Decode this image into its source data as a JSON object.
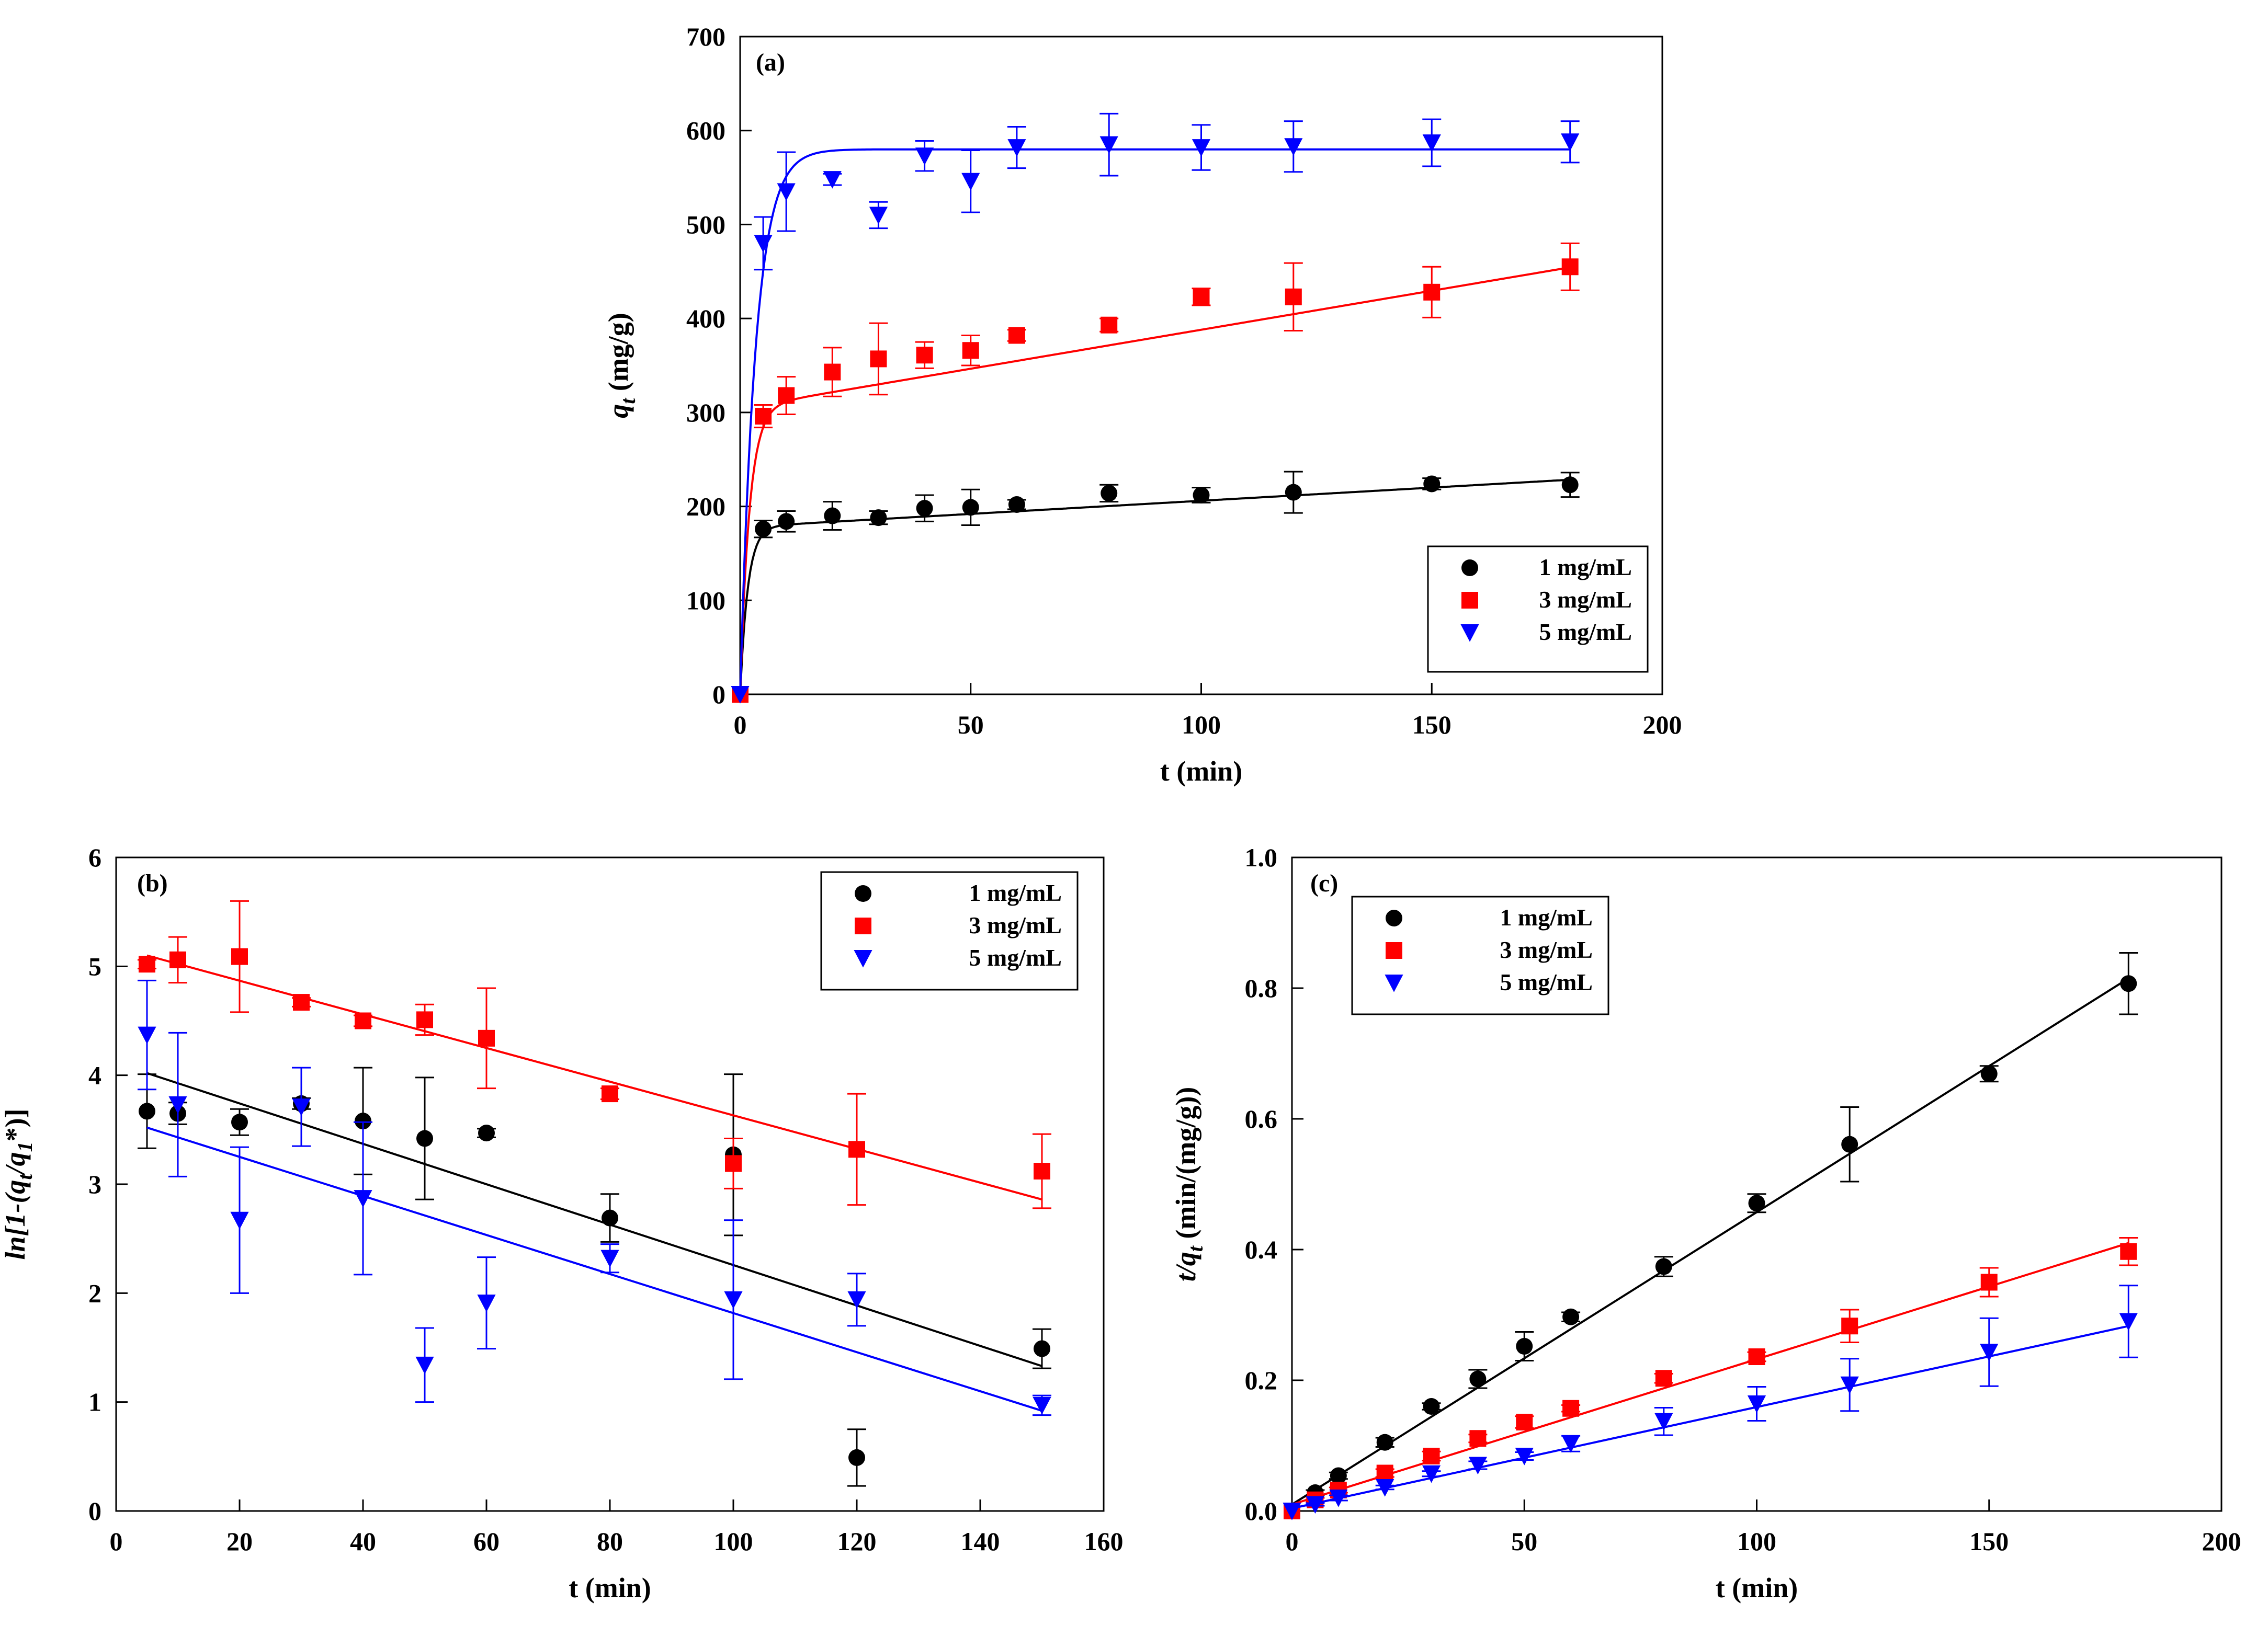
{
  "chart_data": [
    {
      "panel": "(a)",
      "type": "scatter",
      "xlabel": "t (min)",
      "ylabel_main": "q",
      "ylabel_sub": "t",
      "ylabel_unit": " (mg/g)",
      "xlim": [
        0,
        200
      ],
      "ylim": [
        0,
        700
      ],
      "xticks": [
        0,
        50,
        100,
        150,
        200
      ],
      "yticks": [
        0,
        100,
        200,
        300,
        400,
        500,
        600,
        700
      ],
      "legend": "bottom-right",
      "series": [
        {
          "name": "1 mg/mL",
          "color": "#000000",
          "marker": "circle",
          "x": [
            0,
            5,
            10,
            20,
            30,
            40,
            50,
            60,
            80,
            100,
            120,
            150,
            180
          ],
          "y": [
            0,
            176,
            184,
            190,
            188,
            198,
            199,
            202,
            214,
            212,
            215,
            224,
            223
          ],
          "err": [
            0,
            9,
            11,
            15,
            7,
            14,
            19,
            5,
            9,
            8,
            22,
            6,
            13
          ],
          "fit": {
            "model": "pfo_plus_linear",
            "qe": 178,
            "k": 0.6,
            "slope": 0.28
          }
        },
        {
          "name": "3 mg/mL",
          "color": "#ff0000",
          "marker": "square",
          "x": [
            0,
            5,
            10,
            20,
            30,
            40,
            50,
            60,
            80,
            100,
            120,
            150,
            180
          ],
          "y": [
            0,
            296,
            318,
            343,
            357,
            361,
            366,
            382,
            393,
            423,
            423,
            428,
            455
          ],
          "err": [
            0,
            12,
            20,
            26,
            38,
            14,
            16,
            6,
            7,
            9,
            36,
            27,
            25
          ],
          "fit": {
            "model": "pfo_plus_linear",
            "qe": 305,
            "k": 0.5,
            "slope": 0.83
          }
        },
        {
          "name": "5 mg/mL",
          "color": "#0000ff",
          "marker": "triangle-down",
          "x": [
            0,
            5,
            10,
            20,
            30,
            40,
            50,
            60,
            80,
            100,
            120,
            150,
            180
          ],
          "y": [
            0,
            480,
            535,
            548,
            510,
            573,
            546,
            582,
            585,
            582,
            583,
            587,
            588
          ],
          "err": [
            0,
            28,
            42,
            6,
            14,
            16,
            33,
            22,
            33,
            24,
            27,
            25,
            22
          ],
          "fit": {
            "model": "pfo",
            "qe": 580,
            "k": 0.3
          }
        }
      ]
    },
    {
      "panel": "(b)",
      "type": "scatter",
      "xlabel": "t (min)",
      "ylabel_parts": [
        "ln[1-(q",
        "t",
        "/q",
        "1",
        "*)]"
      ],
      "xlim": [
        0,
        160
      ],
      "ylim": [
        0,
        6
      ],
      "xticks": [
        0,
        20,
        40,
        60,
        80,
        100,
        120,
        140,
        160
      ],
      "yticks": [
        0,
        1,
        2,
        3,
        4,
        5,
        6
      ],
      "legend": "top-right",
      "series": [
        {
          "name": "1 mg/mL",
          "color": "#000000",
          "marker": "circle",
          "x": [
            5,
            10,
            20,
            30,
            40,
            50,
            60,
            80,
            100,
            120,
            150
          ],
          "y": [
            3.67,
            3.65,
            3.57,
            3.74,
            3.58,
            3.42,
            3.47,
            2.69,
            3.27,
            0.49,
            1.49
          ],
          "err": [
            0.34,
            0.1,
            0.12,
            0.05,
            0.49,
            0.56,
            0.04,
            0.22,
            0.74,
            0.26,
            0.18
          ],
          "fit": {
            "model": "linear",
            "x": [
              5,
              150
            ],
            "y": [
              4.02,
              1.33
            ]
          }
        },
        {
          "name": "3 mg/mL",
          "color": "#ff0000",
          "marker": "square",
          "x": [
            5,
            10,
            20,
            30,
            40,
            50,
            60,
            80,
            100,
            120,
            150
          ],
          "y": [
            5.02,
            5.06,
            5.09,
            4.67,
            4.5,
            4.51,
            4.34,
            3.83,
            3.19,
            3.32,
            3.12
          ],
          "err": [
            0.04,
            0.21,
            0.51,
            0.04,
            0.05,
            0.14,
            0.46,
            0.05,
            0.23,
            0.51,
            0.34
          ],
          "fit": {
            "model": "linear",
            "x": [
              5,
              150
            ],
            "y": [
              5.1,
              2.86
            ]
          }
        },
        {
          "name": "5 mg/mL",
          "color": "#0000ff",
          "marker": "triangle-down",
          "x": [
            5,
            10,
            20,
            30,
            40,
            50,
            60,
            80,
            100,
            120,
            150
          ],
          "y": [
            4.37,
            3.73,
            2.67,
            3.71,
            2.87,
            1.34,
            1.91,
            2.32,
            1.94,
            1.94,
            0.97
          ],
          "err": [
            0.5,
            0.66,
            0.67,
            0.36,
            0.7,
            0.34,
            0.42,
            0.13,
            0.73,
            0.24,
            0.09
          ],
          "fit": {
            "model": "linear",
            "x": [
              5,
              150
            ],
            "y": [
              3.52,
              0.92
            ]
          }
        }
      ]
    },
    {
      "panel": "(c)",
      "type": "scatter",
      "xlabel": "t (min)",
      "ylabel_parts": [
        "t/q",
        "t",
        " (min/(mg/g))"
      ],
      "xlim": [
        0,
        200
      ],
      "ylim": [
        0,
        1.0
      ],
      "xticks": [
        0,
        50,
        100,
        150,
        200
      ],
      "yticks": [
        0.0,
        0.2,
        0.4,
        0.6,
        0.8,
        1.0
      ],
      "ytick_labels": [
        "0.0",
        "0.2",
        "0.4",
        "0.6",
        "0.8",
        "1.0"
      ],
      "legend": "top-left",
      "series": [
        {
          "name": "1 mg/mL",
          "color": "#000000",
          "marker": "circle",
          "x": [
            0,
            5,
            10,
            20,
            30,
            40,
            50,
            60,
            80,
            100,
            120,
            150,
            180
          ],
          "y": [
            0,
            0.028,
            0.054,
            0.105,
            0.16,
            0.202,
            0.252,
            0.297,
            0.374,
            0.471,
            0.561,
            0.669,
            0.807
          ],
          "err": [
            0,
            0.004,
            0.005,
            0.007,
            0.005,
            0.014,
            0.022,
            0.007,
            0.015,
            0.014,
            0.057,
            0.012,
            0.047
          ],
          "fit": {
            "model": "linear",
            "x": [
              0,
              180
            ],
            "y": [
              0.01,
              0.815
            ]
          }
        },
        {
          "name": "3 mg/mL",
          "color": "#ff0000",
          "marker": "square",
          "x": [
            0,
            5,
            10,
            20,
            30,
            40,
            50,
            60,
            80,
            100,
            120,
            150,
            180
          ],
          "y": [
            0,
            0.017,
            0.032,
            0.058,
            0.084,
            0.111,
            0.136,
            0.157,
            0.203,
            0.236,
            0.283,
            0.35,
            0.397
          ],
          "err": [
            0,
            0.003,
            0.004,
            0.006,
            0.007,
            0.006,
            0.009,
            0.005,
            0.007,
            0.007,
            0.025,
            0.022,
            0.021
          ],
          "fit": {
            "model": "linear",
            "x": [
              0,
              180
            ],
            "y": [
              0.01,
              0.41
            ]
          }
        },
        {
          "name": "5 mg/mL",
          "color": "#0000ff",
          "marker": "triangle-down",
          "x": [
            0,
            5,
            10,
            20,
            30,
            40,
            50,
            60,
            80,
            100,
            120,
            150,
            180
          ],
          "y": [
            0,
            0.01,
            0.02,
            0.036,
            0.057,
            0.07,
            0.084,
            0.103,
            0.137,
            0.164,
            0.193,
            0.243,
            0.29
          ],
          "err": [
            0,
            0.002,
            0.004,
            0.003,
            0.004,
            0.006,
            0.006,
            0.012,
            0.021,
            0.026,
            0.04,
            0.052,
            0.055
          ],
          "fit": {
            "model": "linear",
            "x": [
              0,
              180
            ],
            "y": [
              0.004,
              0.283
            ]
          }
        }
      ]
    }
  ]
}
